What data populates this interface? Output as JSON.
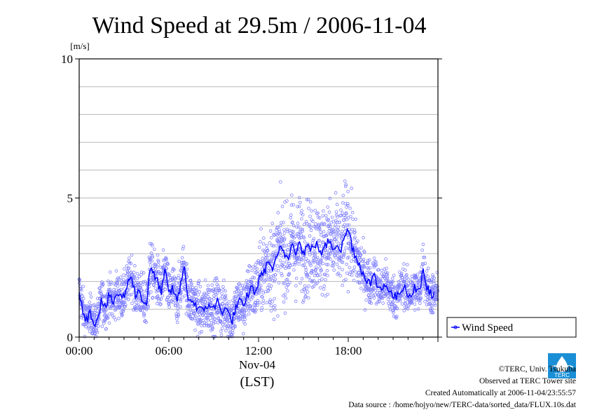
{
  "chart_data": {
    "type": "scatter",
    "title": "Wind Speed at 29.5m / 2006-11-04",
    "ylabel": "[m/s]",
    "xlabel_date": "Nov-04",
    "xlabel_tz": "(LST)",
    "ylim": [
      0,
      10
    ],
    "xlim_hours": [
      0,
      24
    ],
    "x_ticks": [
      "00:00",
      "06:00",
      "12:00",
      "18:00"
    ],
    "x_tick_hours": [
      0,
      6,
      12,
      18
    ],
    "y_ticks": [
      "0",
      "5",
      "10"
    ],
    "y_tick_values": [
      0,
      5,
      10
    ],
    "grid": true,
    "legend_position": "right",
    "series": [
      {
        "name": "Wind Speed",
        "color": "#0000ff",
        "marker_color": "#8080ff",
        "hours": [
          0.0,
          0.25,
          0.5,
          0.75,
          1.0,
          1.25,
          1.5,
          1.75,
          2.0,
          2.25,
          2.5,
          2.75,
          3.0,
          3.25,
          3.5,
          3.75,
          4.0,
          4.25,
          4.5,
          4.75,
          5.0,
          5.25,
          5.5,
          5.75,
          6.0,
          6.25,
          6.5,
          6.75,
          7.0,
          7.25,
          7.5,
          7.75,
          8.0,
          8.25,
          8.5,
          8.75,
          9.0,
          9.25,
          9.5,
          9.75,
          10.0,
          10.25,
          10.5,
          10.75,
          11.0,
          11.25,
          11.5,
          11.75,
          12.0,
          12.25,
          12.5,
          12.75,
          13.0,
          13.25,
          13.5,
          13.75,
          14.0,
          14.25,
          14.5,
          14.75,
          15.0,
          15.25,
          15.5,
          15.75,
          16.0,
          16.25,
          16.5,
          16.75,
          17.0,
          17.25,
          17.5,
          17.75,
          18.0,
          18.25,
          18.5,
          18.75,
          19.0,
          19.25,
          19.5,
          19.75,
          20.0,
          20.25,
          20.5,
          20.75,
          21.0,
          21.25,
          21.5,
          21.75,
          22.0,
          22.25,
          22.5,
          22.75,
          23.0,
          23.25,
          23.5,
          23.75
        ],
        "mean_ms": [
          1.7,
          1.0,
          0.6,
          0.9,
          0.5,
          0.7,
          1.4,
          1.0,
          1.5,
          1.2,
          1.6,
          1.4,
          1.5,
          1.9,
          2.3,
          1.5,
          1.7,
          1.3,
          1.2,
          2.5,
          2.2,
          2.0,
          1.6,
          2.4,
          1.5,
          1.8,
          1.3,
          1.7,
          2.6,
          1.5,
          1.3,
          1.2,
          1.0,
          0.9,
          1.1,
          1.2,
          1.0,
          1.3,
          0.9,
          1.1,
          0.8,
          0.6,
          1.1,
          1.3,
          1.0,
          1.5,
          1.8,
          1.6,
          2.0,
          2.3,
          2.5,
          2.7,
          2.4,
          2.9,
          3.2,
          3.0,
          2.8,
          3.5,
          3.1,
          3.4,
          3.0,
          3.3,
          3.1,
          3.4,
          3.2,
          3.0,
          3.3,
          3.5,
          3.2,
          3.4,
          3.1,
          3.6,
          3.9,
          3.3,
          2.9,
          2.6,
          2.3,
          2.1,
          1.9,
          2.2,
          1.8,
          1.7,
          2.0,
          1.6,
          1.5,
          1.4,
          1.7,
          1.9,
          1.5,
          1.6,
          1.8,
          1.5,
          2.6,
          1.8,
          1.6,
          1.5
        ],
        "spread_ms": [
          0.5,
          0.5,
          0.4,
          0.4,
          0.4,
          0.5,
          0.5,
          0.5,
          0.5,
          0.5,
          0.5,
          0.5,
          0.5,
          0.5,
          0.5,
          0.5,
          0.5,
          0.6,
          0.6,
          0.6,
          0.6,
          0.6,
          0.6,
          0.6,
          0.6,
          0.6,
          0.6,
          0.6,
          0.6,
          0.6,
          0.6,
          0.6,
          0.6,
          0.6,
          0.6,
          0.6,
          0.6,
          0.6,
          0.6,
          0.6,
          0.6,
          0.6,
          0.6,
          0.6,
          0.6,
          0.6,
          0.7,
          0.7,
          0.8,
          0.9,
          1.0,
          1.1,
          1.1,
          1.1,
          1.1,
          1.1,
          1.1,
          1.1,
          1.1,
          1.1,
          1.1,
          1.1,
          1.1,
          1.1,
          1.1,
          1.0,
          1.0,
          1.0,
          1.0,
          1.0,
          1.0,
          1.2,
          1.2,
          0.9,
          0.8,
          0.7,
          0.6,
          0.6,
          0.5,
          0.5,
          0.5,
          0.5,
          0.5,
          0.5,
          0.5,
          0.5,
          0.5,
          0.5,
          0.5,
          0.5,
          0.5,
          0.5,
          0.6,
          0.5,
          0.5,
          0.5
        ]
      }
    ]
  },
  "credits": {
    "copyright": "©TERC, Univ. Tsukuba",
    "observed": "Observed at TERC Tower site",
    "created": "Created Automatically at 2006-11-04/23:55:57",
    "source": "Data source : /home/hojyo/new/TERC-data/sorted_data/FLUX.10s.dat"
  },
  "logo": {
    "text": "TERC",
    "color": "#1a8fd6"
  }
}
